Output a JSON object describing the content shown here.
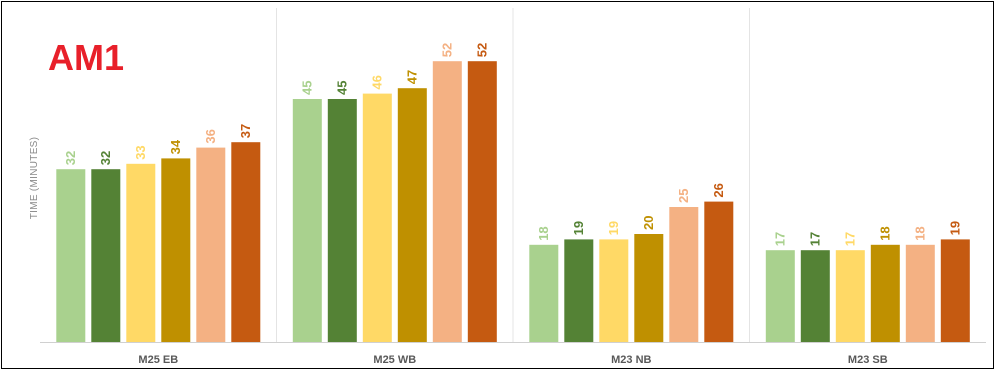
{
  "chart_data": {
    "type": "bar",
    "title": "AM1",
    "ylabel": "TIME (MINUTES)",
    "xlabel": "",
    "ylim": [
      0,
      60
    ],
    "grid": false,
    "categories": [
      "M25 EB",
      "M25 WB",
      "M23 NB",
      "M23 SB"
    ],
    "series": [
      {
        "color": "#a9d18e",
        "values": [
          32,
          45,
          18,
          17
        ]
      },
      {
        "color": "#548235",
        "values": [
          32,
          45,
          19,
          17
        ]
      },
      {
        "color": "#ffd966",
        "values": [
          33,
          46,
          19,
          17
        ]
      },
      {
        "color": "#bf9000",
        "values": [
          34,
          47,
          20,
          18
        ]
      },
      {
        "color": "#f4b183",
        "values": [
          36,
          52,
          25,
          18
        ]
      },
      {
        "color": "#c55a11",
        "values": [
          37,
          52,
          26,
          19
        ]
      }
    ]
  }
}
